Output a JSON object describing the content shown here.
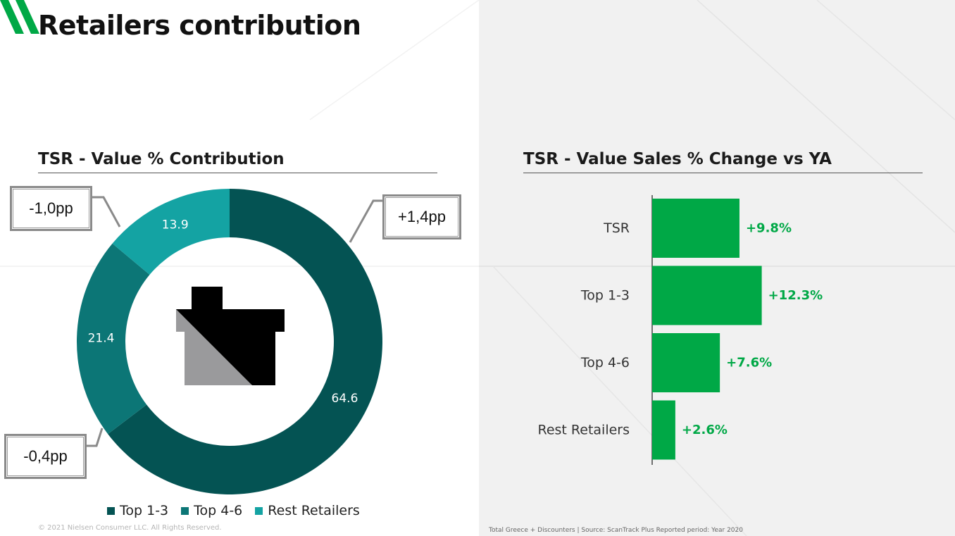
{
  "page": {
    "title": "Retailers contribution",
    "footer_left": "© 2021 Nielsen Consumer LLC. All Rights Reserved.",
    "footer_right": "Total Greece + Discounters | Source: ScanTrack Plus  Reported period: Year 2020"
  },
  "colors": {
    "brand_green": "#00a846",
    "top_1_3": "#045353",
    "top_4_6": "#0c7676",
    "rest": "#14a3a3",
    "bar_green": "#00a846"
  },
  "callouts": [
    {
      "text": "-1,0pp"
    },
    {
      "text": "+1,4pp"
    },
    {
      "text": "-0,4pp"
    }
  ],
  "icon": {
    "name": "store-icon"
  },
  "chart_data": [
    {
      "type": "pie",
      "title": "TSR - Value % Contribution",
      "donut": true,
      "legend_position": "bottom",
      "slices": [
        {
          "label": "Top 1-3",
          "value": 64.6,
          "display": "64.6",
          "color": "#045353"
        },
        {
          "label": "Top 4-6",
          "value": 21.4,
          "display": "21.4",
          "color": "#0c7676"
        },
        {
          "label": "Rest Retailers",
          "value": 13.9,
          "display": "13.9",
          "color": "#14a3a3"
        }
      ]
    },
    {
      "type": "bar",
      "orientation": "horizontal",
      "title": "TSR - Value Sales % Change vs YA",
      "categories": [
        "TSR",
        "Top 1-3",
        "Top 4-6",
        "Rest Retailers"
      ],
      "values": [
        9.8,
        12.3,
        7.6,
        2.6
      ],
      "labels": [
        "+9.8%",
        "+12.3%",
        "+7.6%",
        "+2.6%"
      ],
      "xlim": [
        0,
        40
      ],
      "grid": false,
      "color": "#00a846"
    }
  ]
}
